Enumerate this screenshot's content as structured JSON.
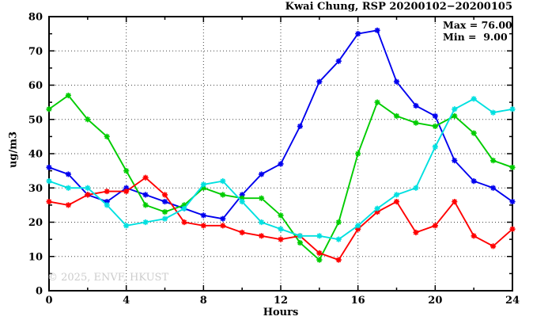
{
  "title": "Kwai Chung, RSP 20200102−20200105",
  "annotations": {
    "max": "Max = 76.00",
    "min": "Min =  9.00"
  },
  "copyright": "© 2025, ENVF, HKUST",
  "chart_data": {
    "type": "line",
    "title": "Kwai Chung, RSP 20200102−20200105",
    "xlabel": "Hours",
    "ylabel": "ug/m3",
    "xlim": [
      0,
      24
    ],
    "ylim": [
      0,
      80
    ],
    "grid": true,
    "x_ticks": [
      0,
      4,
      8,
      12,
      16,
      20,
      24
    ],
    "x_minor_ticks": [
      2,
      6,
      10,
      14,
      18,
      22
    ],
    "y_ticks": [
      0,
      10,
      20,
      30,
      40,
      50,
      60,
      70,
      80
    ],
    "y_minor_ticks": [
      5,
      15,
      25,
      35,
      45,
      55,
      65,
      75
    ],
    "x_gridlines": [
      4,
      8,
      12,
      16,
      20
    ],
    "y_gridlines": [
      10,
      20,
      30,
      40,
      50,
      60,
      70
    ],
    "x": [
      0,
      1,
      2,
      3,
      4,
      5,
      6,
      7,
      8,
      9,
      10,
      11,
      12,
      13,
      14,
      15,
      16,
      17,
      18,
      19,
      20,
      21,
      22,
      23,
      24
    ],
    "series": [
      {
        "name": "blue",
        "color": "#0000ee",
        "values": [
          36,
          34,
          28,
          26,
          30,
          28,
          26,
          24,
          22,
          21,
          28,
          34,
          37,
          48,
          61,
          67,
          75,
          76,
          61,
          54,
          51,
          38,
          32,
          30,
          26
        ]
      },
      {
        "name": "green",
        "color": "#00cc00",
        "values": [
          53,
          57,
          50,
          45,
          35,
          25,
          23,
          25,
          30,
          28,
          27,
          27,
          22,
          14,
          9,
          20,
          40,
          55,
          51,
          49,
          48,
          51,
          46,
          38,
          36
        ]
      },
      {
        "name": "red",
        "color": "#ff0000",
        "values": [
          26,
          25,
          28,
          29,
          29,
          33,
          28,
          20,
          19,
          19,
          17,
          16,
          15,
          16,
          11,
          9,
          18,
          23,
          26,
          17,
          19,
          26,
          16,
          13,
          18
        ]
      },
      {
        "name": "cyan",
        "color": "#00e0e0",
        "values": [
          32,
          30,
          30,
          25,
          19,
          20,
          21,
          24,
          31,
          32,
          26,
          20,
          18,
          16,
          16,
          15,
          19,
          24,
          28,
          30,
          42,
          53,
          56,
          52,
          53
        ]
      }
    ],
    "stats": {
      "max": 76.0,
      "min": 9.0
    }
  }
}
